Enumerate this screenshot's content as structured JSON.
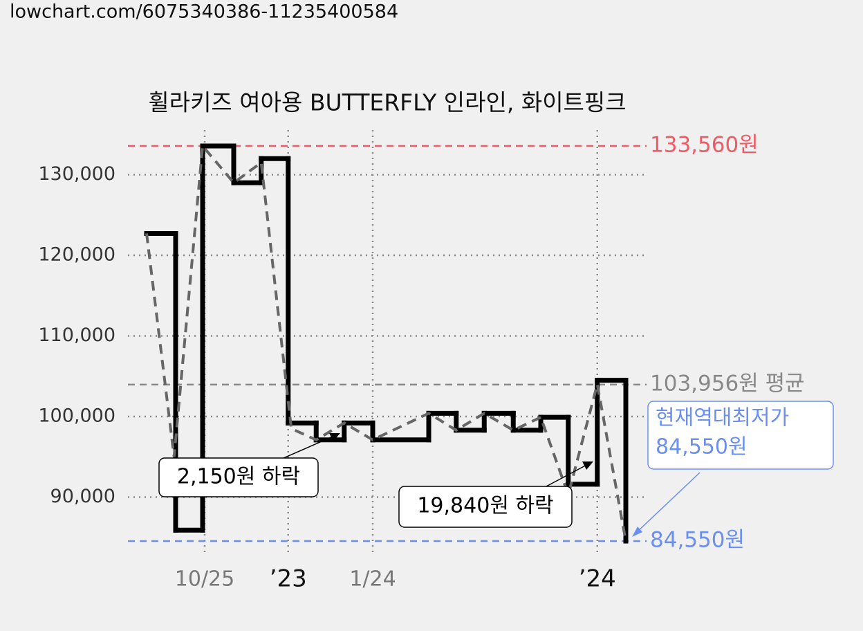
{
  "url": "lowchart.com/6075340386-11235400584",
  "chart_data": {
    "type": "step-line",
    "title": "휠라키즈 여아용 BUTTERFLY 인라인, 화이트핑크",
    "xlim": [
      0,
      100
    ],
    "xticks": [
      {
        "value": 14.8,
        "label": "10/25"
      },
      {
        "value": 30.9,
        "label": "’23"
      },
      {
        "value": 47.2,
        "label": "1/24"
      },
      {
        "value": 90.5,
        "label": "’24"
      }
    ],
    "ylim": [
      82000,
      138000
    ],
    "yticks": [
      {
        "value": 90000,
        "label": "90,000"
      },
      {
        "value": 100000,
        "label": "100,000"
      },
      {
        "value": 110000,
        "label": "110,000"
      },
      {
        "value": 120000,
        "label": "120,000"
      },
      {
        "value": 130000,
        "label": "130,000"
      }
    ],
    "grid": true,
    "series": [
      {
        "color": "#000000",
        "style": "step",
        "x": [
          3.6,
          9.2,
          14.4,
          20.4,
          25.7,
          30.9,
          36.3,
          41.7,
          47.2,
          58,
          63.3,
          68.7,
          74.3,
          79.6,
          84.9,
          90.5,
          96
        ],
        "values": [
          122700,
          85900,
          133560,
          129000,
          132000,
          99200,
          97100,
          99200,
          97100,
          100400,
          98300,
          100400,
          98300,
          99900,
          91600,
          104500,
          84550
        ]
      },
      {
        "color": "#666666",
        "style": "dashed",
        "x": [
          3.6,
          8.9,
          14.4,
          20.4,
          25.7,
          31.5,
          36.3,
          41.7,
          47.2,
          58,
          63.3,
          68.7,
          74.3,
          79.6,
          84.9,
          90.5,
          96
        ],
        "values": [
          122700,
          95000,
          133560,
          129000,
          131500,
          98500,
          97100,
          99200,
          97100,
          100400,
          98300,
          100400,
          98300,
          99900,
          90300,
          104000,
          84550
        ]
      }
    ],
    "reference_lines": [
      {
        "value": 133560,
        "label": "133,560원",
        "color": "#f05a64"
      },
      {
        "value": 103956,
        "label": "103,956원 평균",
        "color": "#888888"
      },
      {
        "value": 84550,
        "label": "84,550원",
        "color": "#6a8ff0"
      }
    ],
    "annotations": [
      {
        "text": "2,150원 하락"
      },
      {
        "text": "19,840원 하락"
      },
      {
        "lines": [
          "현재역대최저가",
          "84,550원"
        ]
      }
    ]
  }
}
